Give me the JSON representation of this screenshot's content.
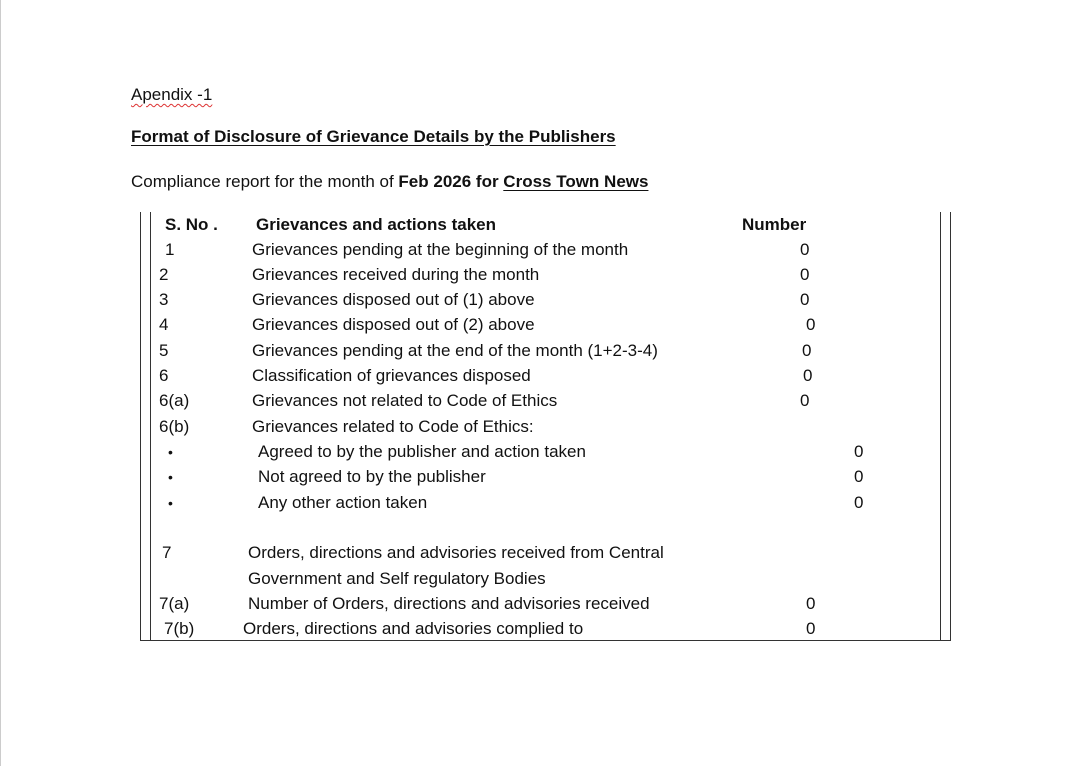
{
  "heading": {
    "appendix": "Apendix -1",
    "title": "Format of Disclosure of Grievance Details by the Publishers"
  },
  "report": {
    "prefix": "Compliance report for the month of ",
    "month": "Feb 2026",
    "for_text": " for ",
    "publisher": "Cross Town News"
  },
  "table": {
    "headers": {
      "sno": "S. No .",
      "desc": "Grievances and actions taken",
      "number": "Number"
    },
    "rows": [
      {
        "sno": "1",
        "desc": "Grievances pending at the beginning of the month",
        "number": "0"
      },
      {
        "sno": "2",
        "desc": "Grievances received during the month",
        "number": "0"
      },
      {
        "sno": "3",
        "desc": "Grievances disposed out of (1) above",
        "number": "0"
      },
      {
        "sno": "4",
        "desc": "Grievances disposed out of (2) above",
        "number": "0"
      },
      {
        "sno": "5",
        "desc": "Grievances pending at the end of the month (1+2-3-4)",
        "number": "0"
      },
      {
        "sno": "6",
        "desc": "Classification of grievances disposed",
        "number": "0"
      },
      {
        "sno": "6(a)",
        "desc": "Grievances not related to Code of Ethics",
        "number": "0"
      },
      {
        "sno": "6(b)",
        "desc": "Grievances related to Code of Ethics:",
        "number": ""
      },
      {
        "sno": "•",
        "desc": "Agreed to by the publisher and action taken",
        "number": "0"
      },
      {
        "sno": "•",
        "desc": "Not agreed to by the publisher",
        "number": "0"
      },
      {
        "sno": "•",
        "desc": "Any other action taken",
        "number": "0"
      },
      {
        "sno": "7",
        "desc": "Orders, directions and advisories received from Central",
        "number": ""
      },
      {
        "sno": "",
        "desc": "Government and Self regulatory Bodies",
        "number": ""
      },
      {
        "sno": "7(a)",
        "desc": "Number of Orders, directions and advisories received",
        "number": "0"
      },
      {
        "sno": "7(b)",
        "desc": "Orders, directions and advisories complied to",
        "number": "0"
      }
    ]
  }
}
